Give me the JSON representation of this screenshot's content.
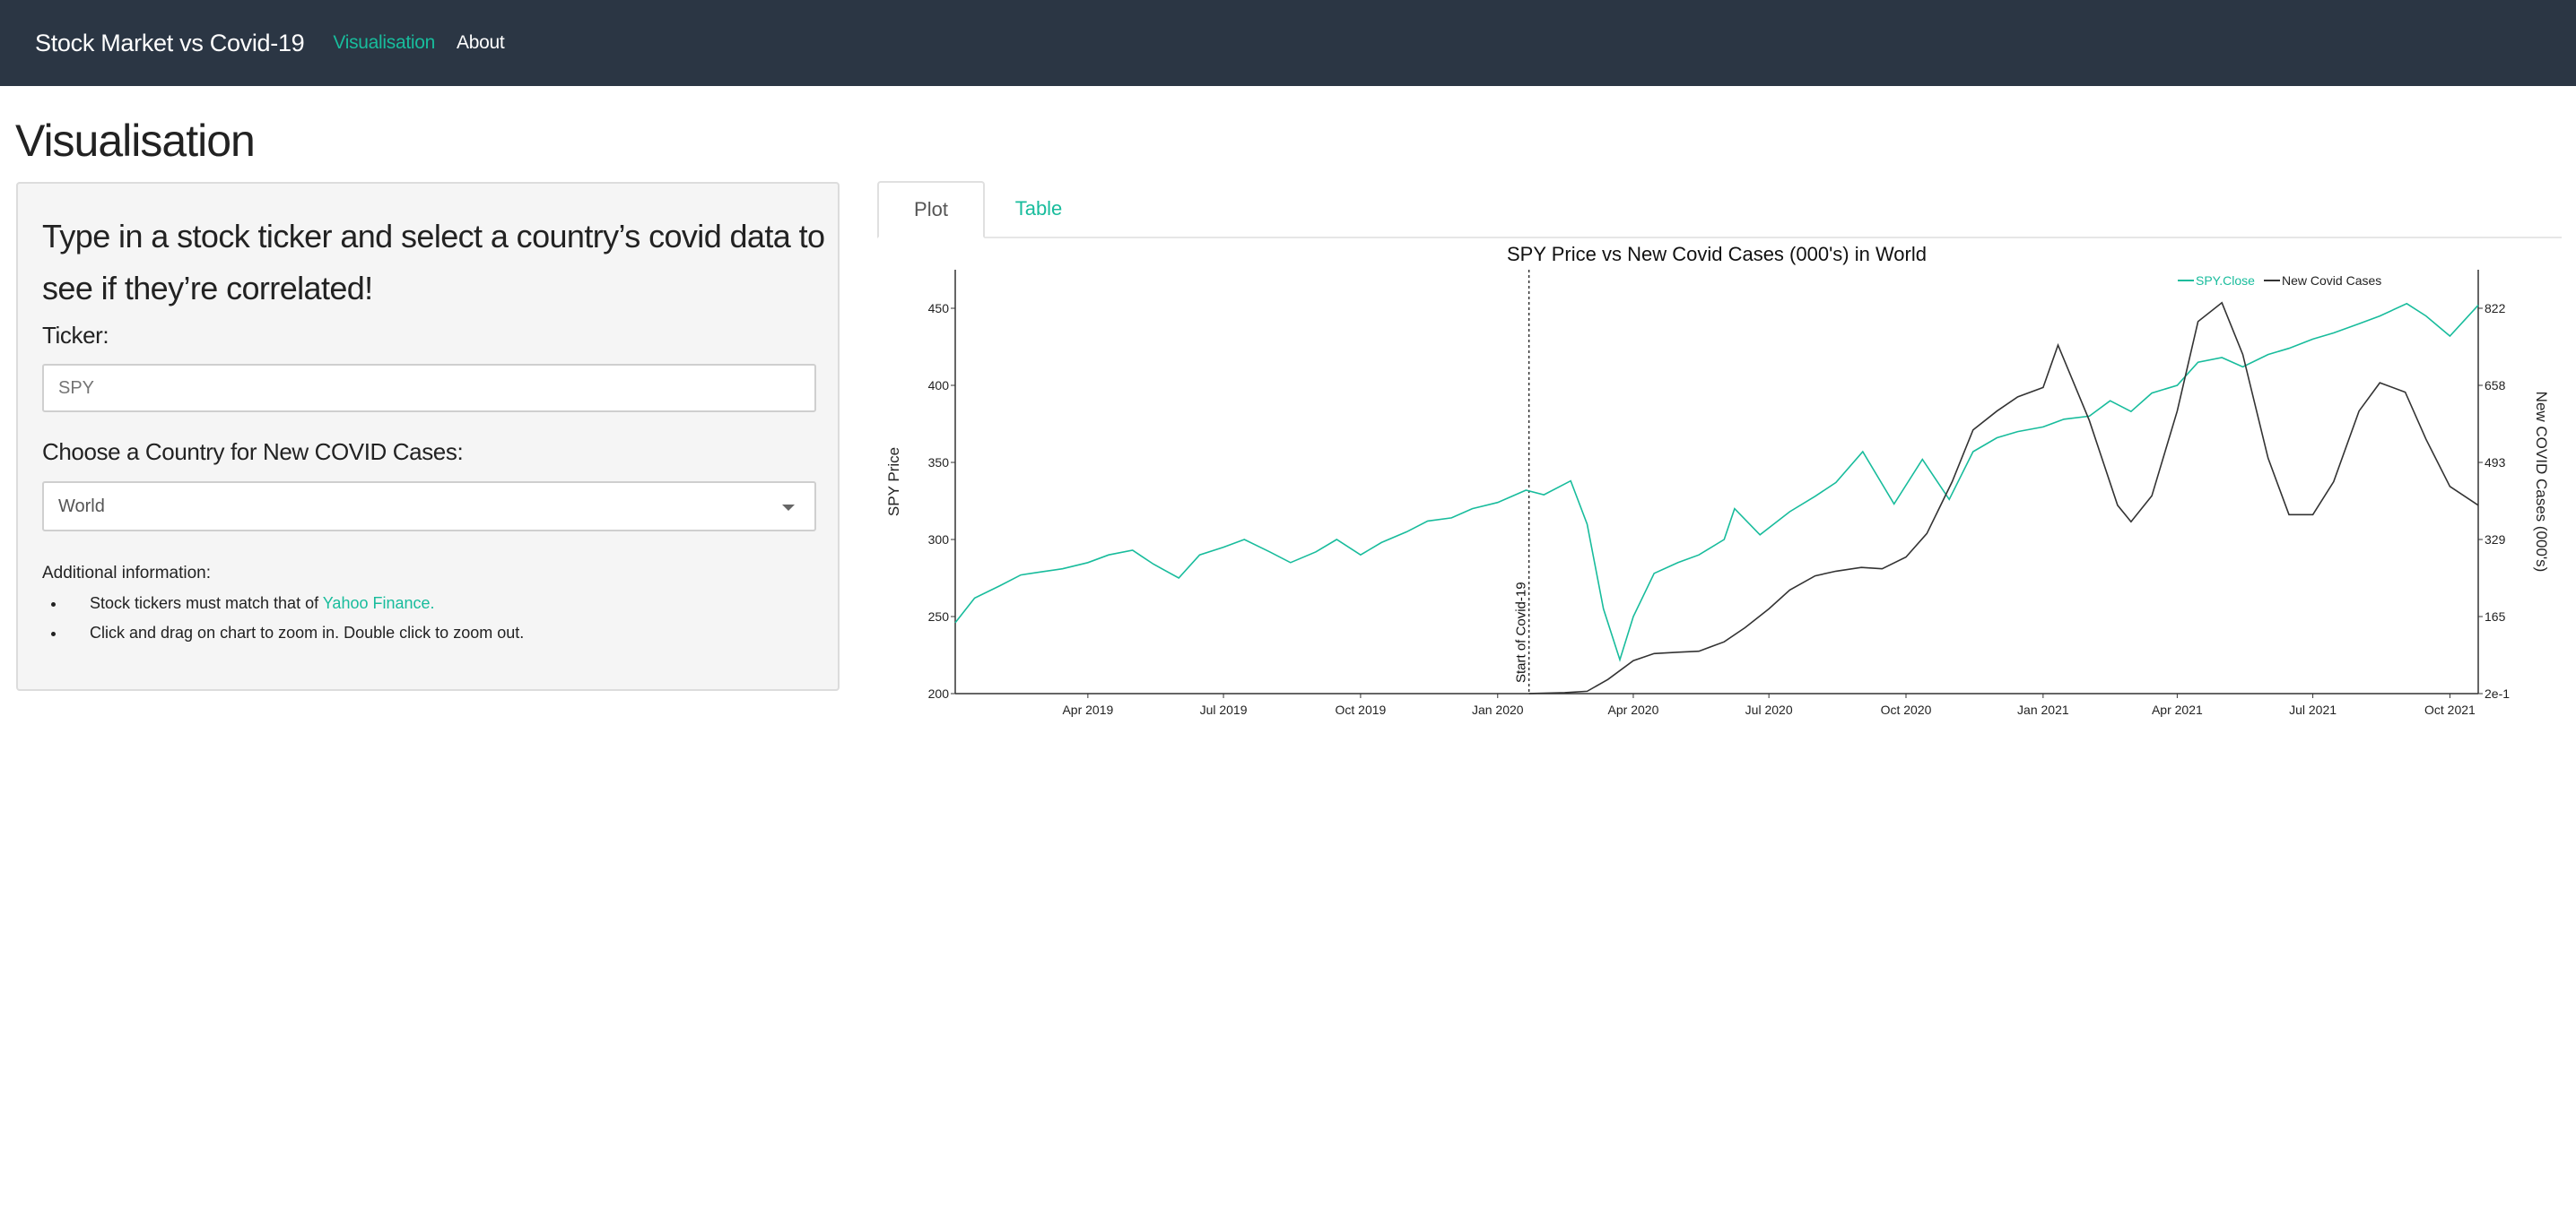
{
  "navbar": {
    "brand": "Stock Market vs Covid-19",
    "links": [
      {
        "label": "Visualisation",
        "active": true
      },
      {
        "label": "About",
        "active": false
      }
    ]
  },
  "page": {
    "title": "Visualisation"
  },
  "sidebar": {
    "heading": "Type in a stock ticker and select a country’s covid data to see if they’re correlated!",
    "ticker_label": "Ticker:",
    "ticker_placeholder": "SPY",
    "country_label": "Choose a Country for New COVID Cases:",
    "country_selected": "World",
    "info_label": "Additional information:",
    "info_items": [
      {
        "text": "Stock tickers must match that of ",
        "link": "Yahoo Finance."
      },
      {
        "text": "Click and drag on chart to zoom in. Double click to zoom out."
      }
    ]
  },
  "tabs": [
    {
      "label": "Plot",
      "active": true
    },
    {
      "label": "Table",
      "active": false
    }
  ],
  "colors": {
    "accent": "#18bc9c",
    "navbar": "#2b3644",
    "covid_line": "#333333"
  },
  "chart_data": {
    "type": "line",
    "title": "SPY Price vs New Covid Cases (000's) in World",
    "ylabel": "SPY Price",
    "y2label": "New COVID Cases (000's)",
    "x_ticks": [
      "Apr 2019",
      "Jul 2019",
      "Oct 2019",
      "Jan 2020",
      "Apr 2020",
      "Jul 2020",
      "Oct 2020",
      "Jan 2021",
      "Apr 2021",
      "Jul 2021",
      "Oct 2021"
    ],
    "x_range": [
      "2019-01-02",
      "2021-10-20"
    ],
    "y_ticks": [
      200,
      250,
      300,
      350,
      400,
      450
    ],
    "ylim": [
      200,
      475
    ],
    "y2_ticks": [
      "2e-1",
      "165",
      "329",
      "493",
      "658",
      "822"
    ],
    "y2lim": [
      0,
      900
    ],
    "annotation": {
      "date": "2020-01-22",
      "label": "Start of Covid-19"
    },
    "legend": {
      "placement": "top-right",
      "entries": [
        "SPY.Close",
        "New Covid Cases"
      ]
    },
    "series": [
      {
        "name": "SPY.Close",
        "axis": "left",
        "color": "#18bc9c",
        "points": [
          [
            "2019-01-02",
            246
          ],
          [
            "2019-01-15",
            262
          ],
          [
            "2019-02-01",
            270
          ],
          [
            "2019-02-15",
            277
          ],
          [
            "2019-03-01",
            279
          ],
          [
            "2019-03-15",
            281
          ],
          [
            "2019-04-01",
            285
          ],
          [
            "2019-04-15",
            290
          ],
          [
            "2019-05-01",
            293
          ],
          [
            "2019-05-15",
            284
          ],
          [
            "2019-06-01",
            275
          ],
          [
            "2019-06-15",
            290
          ],
          [
            "2019-07-01",
            295
          ],
          [
            "2019-07-15",
            300
          ],
          [
            "2019-08-01",
            292
          ],
          [
            "2019-08-15",
            285
          ],
          [
            "2019-09-01",
            292
          ],
          [
            "2019-09-15",
            300
          ],
          [
            "2019-10-01",
            290
          ],
          [
            "2019-10-15",
            298
          ],
          [
            "2019-11-01",
            305
          ],
          [
            "2019-11-15",
            312
          ],
          [
            "2019-12-01",
            314
          ],
          [
            "2019-12-15",
            320
          ],
          [
            "2020-01-01",
            324
          ],
          [
            "2020-01-20",
            332
          ],
          [
            "2020-02-01",
            329
          ],
          [
            "2020-02-19",
            338
          ],
          [
            "2020-03-01",
            310
          ],
          [
            "2020-03-12",
            255
          ],
          [
            "2020-03-23",
            222
          ],
          [
            "2020-04-01",
            250
          ],
          [
            "2020-04-15",
            278
          ],
          [
            "2020-05-01",
            285
          ],
          [
            "2020-05-15",
            290
          ],
          [
            "2020-06-01",
            300
          ],
          [
            "2020-06-08",
            320
          ],
          [
            "2020-06-25",
            303
          ],
          [
            "2020-07-15",
            318
          ],
          [
            "2020-08-01",
            328
          ],
          [
            "2020-08-15",
            337
          ],
          [
            "2020-09-02",
            357
          ],
          [
            "2020-09-23",
            323
          ],
          [
            "2020-10-12",
            352
          ],
          [
            "2020-10-30",
            326
          ],
          [
            "2020-11-15",
            357
          ],
          [
            "2020-12-01",
            366
          ],
          [
            "2020-12-15",
            370
          ],
          [
            "2021-01-01",
            373
          ],
          [
            "2021-01-15",
            378
          ],
          [
            "2021-02-01",
            380
          ],
          [
            "2021-02-15",
            390
          ],
          [
            "2021-03-01",
            383
          ],
          [
            "2021-03-15",
            395
          ],
          [
            "2021-04-01",
            400
          ],
          [
            "2021-04-15",
            415
          ],
          [
            "2021-05-01",
            418
          ],
          [
            "2021-05-15",
            412
          ],
          [
            "2021-06-01",
            420
          ],
          [
            "2021-06-15",
            424
          ],
          [
            "2021-07-01",
            430
          ],
          [
            "2021-07-15",
            434
          ],
          [
            "2021-08-01",
            440
          ],
          [
            "2021-08-15",
            445
          ],
          [
            "2021-09-02",
            453
          ],
          [
            "2021-09-15",
            445
          ],
          [
            "2021-10-01",
            432
          ],
          [
            "2021-10-20",
            452
          ]
        ]
      },
      {
        "name": "New Covid Cases",
        "axis": "right",
        "color": "#333333",
        "points": [
          [
            "2020-01-22",
            0.2
          ],
          [
            "2020-02-15",
            2
          ],
          [
            "2020-03-01",
            5
          ],
          [
            "2020-03-15",
            30
          ],
          [
            "2020-04-01",
            70
          ],
          [
            "2020-04-15",
            85
          ],
          [
            "2020-05-01",
            88
          ],
          [
            "2020-05-15",
            90
          ],
          [
            "2020-06-01",
            110
          ],
          [
            "2020-06-15",
            140
          ],
          [
            "2020-07-01",
            180
          ],
          [
            "2020-07-15",
            220
          ],
          [
            "2020-08-01",
            250
          ],
          [
            "2020-08-15",
            260
          ],
          [
            "2020-09-01",
            268
          ],
          [
            "2020-09-15",
            265
          ],
          [
            "2020-10-01",
            290
          ],
          [
            "2020-10-15",
            340
          ],
          [
            "2020-11-01",
            450
          ],
          [
            "2020-11-15",
            560
          ],
          [
            "2020-12-01",
            600
          ],
          [
            "2020-12-15",
            630
          ],
          [
            "2021-01-01",
            650
          ],
          [
            "2021-01-11",
            740
          ],
          [
            "2021-02-01",
            580
          ],
          [
            "2021-02-20",
            400
          ],
          [
            "2021-03-01",
            365
          ],
          [
            "2021-03-15",
            420
          ],
          [
            "2021-04-01",
            600
          ],
          [
            "2021-04-15",
            790
          ],
          [
            "2021-05-01",
            830
          ],
          [
            "2021-05-15",
            720
          ],
          [
            "2021-06-01",
            500
          ],
          [
            "2021-06-15",
            380
          ],
          [
            "2021-07-01",
            380
          ],
          [
            "2021-07-15",
            450
          ],
          [
            "2021-08-01",
            600
          ],
          [
            "2021-08-15",
            660
          ],
          [
            "2021-09-01",
            640
          ],
          [
            "2021-09-15",
            540
          ],
          [
            "2021-10-01",
            440
          ],
          [
            "2021-10-20",
            400
          ]
        ]
      }
    ]
  }
}
